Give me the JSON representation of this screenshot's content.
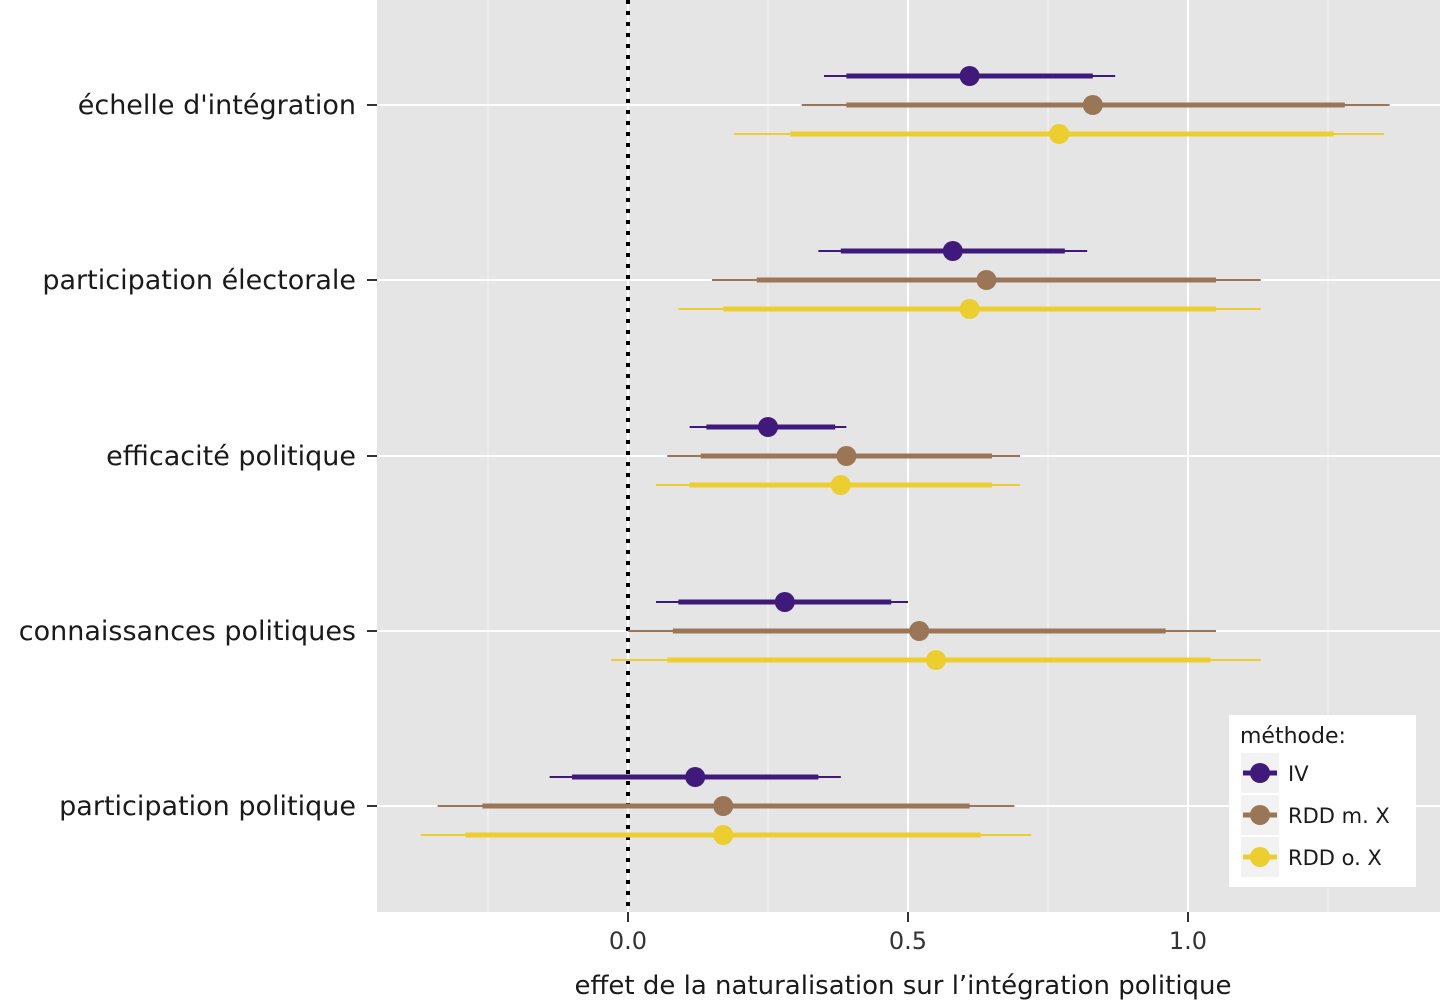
{
  "chart_data": {
    "type": "dot-interval",
    "xlabel": "effet de la naturalisation sur l’intégration politique",
    "xlim": [
      -0.45,
      1.45
    ],
    "x_ticks": [
      0.0,
      0.5,
      1.0
    ],
    "x_tick_labels": [
      "0.0",
      "0.5",
      "1.0"
    ],
    "reference_line": {
      "x": 0,
      "style": "dotted"
    },
    "categories": [
      "échelle d'intégration",
      "participation électorale",
      "efficacité politique",
      "connaissances politiques",
      "participation politique"
    ],
    "legend": {
      "title": "méthode:",
      "position": "bottom-right"
    },
    "series": [
      {
        "name": "IV",
        "color": "#3f1a7a",
        "estimates": [
          0.61,
          0.58,
          0.25,
          0.28,
          0.12
        ],
        "ci_inner": [
          [
            0.39,
            0.83
          ],
          [
            0.38,
            0.78
          ],
          [
            0.14,
            0.37
          ],
          [
            0.09,
            0.47
          ],
          [
            -0.1,
            0.34
          ]
        ],
        "ci_outer": [
          [
            0.35,
            0.87
          ],
          [
            0.34,
            0.82
          ],
          [
            0.11,
            0.39
          ],
          [
            0.05,
            0.5
          ],
          [
            -0.14,
            0.38
          ]
        ]
      },
      {
        "name": "RDD m. X",
        "color": "#9a7657",
        "estimates": [
          0.83,
          0.64,
          0.39,
          0.52,
          0.17
        ],
        "ci_inner": [
          [
            0.39,
            1.28
          ],
          [
            0.23,
            1.05
          ],
          [
            0.13,
            0.65
          ],
          [
            0.08,
            0.96
          ],
          [
            -0.26,
            0.61
          ]
        ],
        "ci_outer": [
          [
            0.31,
            1.36
          ],
          [
            0.15,
            1.13
          ],
          [
            0.07,
            0.7
          ],
          [
            0.0,
            1.05
          ],
          [
            -0.34,
            0.69
          ]
        ]
      },
      {
        "name": "RDD o. X",
        "color": "#eccf2e",
        "estimates": [
          0.77,
          0.61,
          0.38,
          0.55,
          0.17
        ],
        "ci_inner": [
          [
            0.29,
            1.26
          ],
          [
            0.17,
            1.05
          ],
          [
            0.11,
            0.65
          ],
          [
            0.07,
            1.04
          ],
          [
            -0.29,
            0.63
          ]
        ],
        "ci_outer": [
          [
            0.19,
            1.35
          ],
          [
            0.09,
            1.13
          ],
          [
            0.05,
            0.7
          ],
          [
            -0.03,
            1.13
          ],
          [
            -0.37,
            0.72
          ]
        ]
      }
    ]
  }
}
